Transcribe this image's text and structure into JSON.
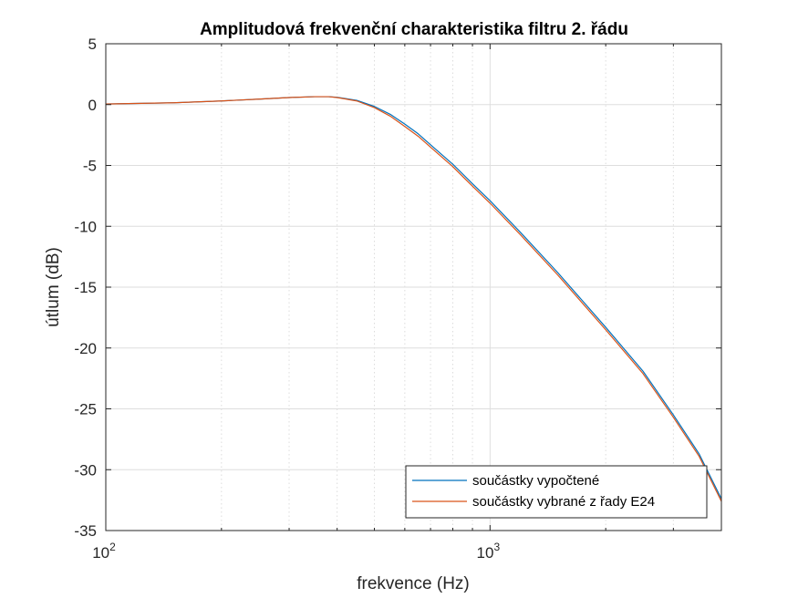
{
  "chart_data": {
    "type": "line",
    "title": "Amplitudová frekvenční charakteristika filtru 2. řádu",
    "xlabel": "frekvence (Hz)",
    "ylabel": "útlum (dB)",
    "x_scale": "log",
    "xlim": [
      100,
      4000
    ],
    "ylim": [
      -35,
      5
    ],
    "y_ticks": [
      5,
      0,
      -5,
      -10,
      -15,
      -20,
      -25,
      -30,
      -35
    ],
    "y_tick_labels": [
      "5",
      "0",
      "-5",
      "-10",
      "-15",
      "-20",
      "-25",
      "-30",
      "-35"
    ],
    "x_ticks": [
      {
        "value": 100,
        "base": "10",
        "exp": "2"
      },
      {
        "value": 1000,
        "base": "10",
        "exp": "3"
      }
    ],
    "grid": true,
    "legend_position": "bottom-right",
    "series": [
      {
        "name": "součástky vypočtené",
        "color": "#0072BD",
        "x": [
          100,
          150,
          200,
          250,
          300,
          350,
          380,
          400,
          450,
          500,
          550,
          600,
          650,
          700,
          800,
          900,
          1000,
          1200,
          1500,
          2000,
          2500,
          3000,
          3500,
          4000
        ],
        "y": [
          0.05,
          0.15,
          0.3,
          0.45,
          0.58,
          0.65,
          0.65,
          0.6,
          0.35,
          -0.15,
          -0.8,
          -1.6,
          -2.4,
          -3.3,
          -4.9,
          -6.5,
          -7.9,
          -10.5,
          -13.8,
          -18.3,
          -21.9,
          -25.5,
          -28.7,
          -32.4
        ]
      },
      {
        "name": "součástky vybrané z řady E24",
        "color": "#D95319",
        "x": [
          100,
          150,
          200,
          250,
          300,
          350,
          380,
          400,
          450,
          500,
          550,
          600,
          650,
          700,
          800,
          900,
          1000,
          1200,
          1500,
          2000,
          2500,
          3000,
          3500,
          4000
        ],
        "y": [
          0.05,
          0.15,
          0.3,
          0.45,
          0.58,
          0.65,
          0.65,
          0.58,
          0.3,
          -0.25,
          -0.95,
          -1.8,
          -2.6,
          -3.5,
          -5.1,
          -6.7,
          -8.1,
          -10.7,
          -14.0,
          -18.5,
          -22.1,
          -25.7,
          -28.9,
          -32.6
        ]
      }
    ]
  }
}
